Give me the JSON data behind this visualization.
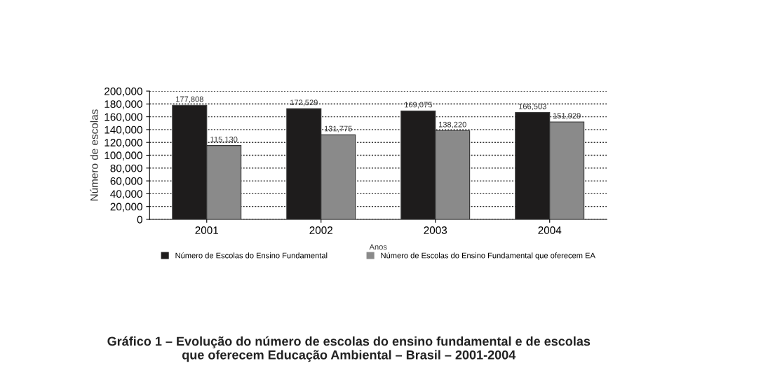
{
  "chart_data": {
    "type": "bar",
    "title": "Gráfico 1 – Evolução do número de escolas do ensino fundamental e de escolas\nque oferecem Educação Ambiental – Brasil – 2001-2004",
    "xlabel": "Anos",
    "ylabel": "Número de escolas",
    "categories": [
      "2001",
      "2002",
      "2003",
      "2004"
    ],
    "series": [
      {
        "name": "Número de Escolas do Ensino Fundamental",
        "color": "#1e1c1c",
        "values": [
          177808,
          172529,
          169075,
          166503
        ]
      },
      {
        "name": "Número de Escolas do Ensino Fundamental que oferecem EA",
        "color": "#8a8a8a",
        "values": [
          115130,
          131775,
          138220,
          151929
        ]
      }
    ],
    "ylim": [
      0,
      200000
    ],
    "yticks": [
      {
        "value": 0,
        "label": "0"
      },
      {
        "value": 20000,
        "label": "20,000"
      },
      {
        "value": 40000,
        "label": "40,000"
      },
      {
        "value": 60000,
        "label": "60,000"
      },
      {
        "value": 80000,
        "label": "80,000"
      },
      {
        "value": 100000,
        "label": "100,000"
      },
      {
        "value": 120000,
        "label": "120,000"
      },
      {
        "value": 140000,
        "label": "140,000"
      },
      {
        "value": 160000,
        "label": "160,000"
      },
      {
        "value": 180000,
        "label": "180,000"
      },
      {
        "value": 200000,
        "label": "200,000"
      }
    ],
    "value_labels": [
      [
        "177,808",
        "172,529",
        "169,075",
        "166,503"
      ],
      [
        "115,130",
        "131,775",
        "138,220",
        "151,929"
      ]
    ],
    "grid": "y",
    "legend": "bottom"
  }
}
